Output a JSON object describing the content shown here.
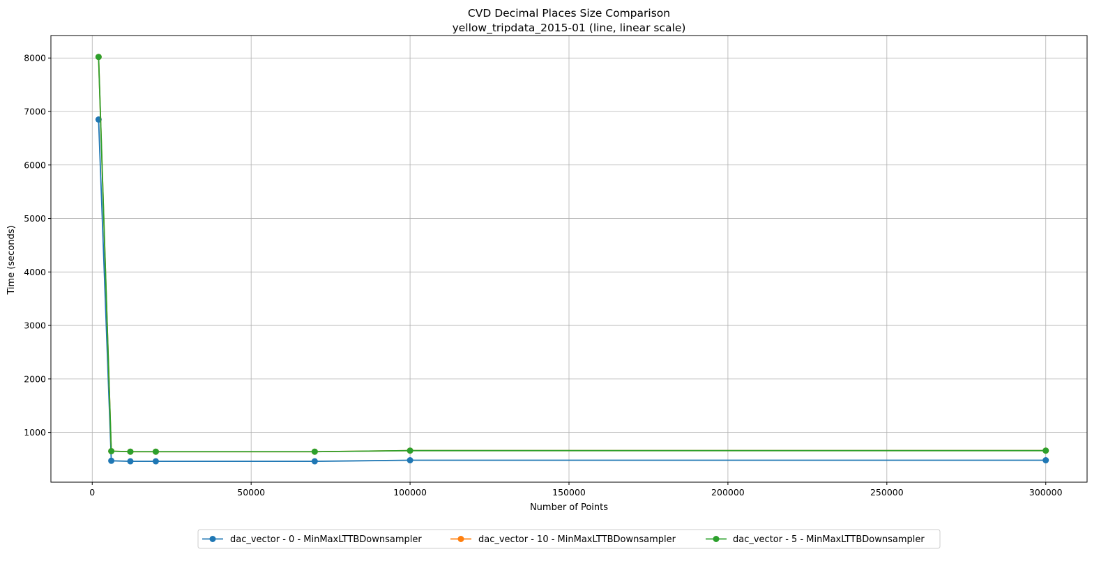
{
  "chart_data": {
    "type": "line",
    "title": "CVD Decimal Places Size Comparison",
    "subtitle": "yellow_tripdata_2015-01 (line, linear scale)",
    "xlabel": "Number of Points",
    "ylabel": "Time (seconds)",
    "xlim": [
      -13000,
      313000
    ],
    "ylim": [
      70,
      8420
    ],
    "xticks": [
      0,
      50000,
      100000,
      150000,
      200000,
      250000,
      300000
    ],
    "yticks": [
      1000,
      2000,
      3000,
      4000,
      5000,
      6000,
      7000,
      8000
    ],
    "grid": true,
    "legend_position": "bottom-center",
    "x": [
      2000,
      6000,
      12000,
      20000,
      70000,
      100000,
      300000
    ],
    "series": [
      {
        "name": "dac_vector - 0 - MinMaxLTTBDownsampler",
        "color": "#1f77b4",
        "values": [
          6850,
          470,
          460,
          460,
          460,
          480,
          480
        ]
      },
      {
        "name": "dac_vector - 10 - MinMaxLTTBDownsampler",
        "color": "#ff7f0e",
        "values": [
          8020,
          650,
          640,
          640,
          640,
          660,
          660
        ]
      },
      {
        "name": "dac_vector - 5 - MinMaxLTTBDownsampler",
        "color": "#2ca02c",
        "values": [
          8020,
          650,
          640,
          640,
          640,
          660,
          660
        ]
      }
    ]
  }
}
